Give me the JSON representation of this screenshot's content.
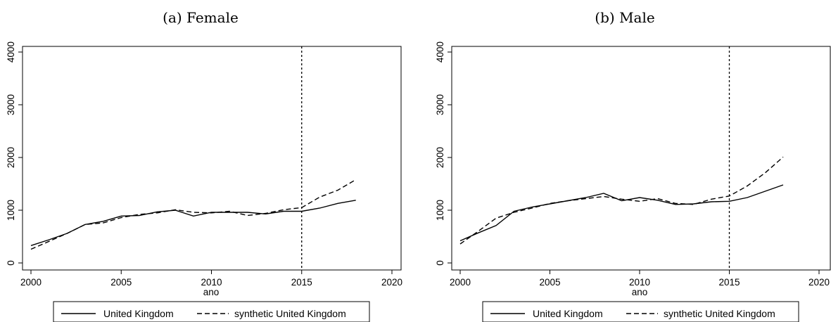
{
  "chart_data": [
    {
      "type": "line",
      "title": "(a) Female",
      "xlabel": "ano",
      "ylabel": "",
      "xlim": [
        2000,
        2020
      ],
      "ylim": [
        0,
        4000
      ],
      "xticks": [
        2000,
        2005,
        2010,
        2015,
        2020
      ],
      "yticks": [
        0,
        1000,
        2000,
        3000,
        4000
      ],
      "vline": 2015,
      "legend_position": "bottom",
      "series": [
        {
          "name": "United Kingdom",
          "style": "solid",
          "color": "#000000",
          "x": [
            2000,
            2001,
            2002,
            2003,
            2004,
            2005,
            2006,
            2007,
            2008,
            2009,
            2010,
            2011,
            2012,
            2013,
            2014,
            2015,
            2016,
            2017,
            2018
          ],
          "values": [
            330,
            440,
            560,
            730,
            790,
            890,
            900,
            970,
            1000,
            890,
            960,
            960,
            960,
            930,
            980,
            980,
            1040,
            1130,
            1190
          ]
        },
        {
          "name": "synthetic United Kingdom",
          "style": "dashed",
          "color": "#000000",
          "x": [
            2000,
            2001,
            2002,
            2003,
            2004,
            2005,
            2006,
            2007,
            2008,
            2009,
            2010,
            2011,
            2012,
            2013,
            2014,
            2015,
            2016,
            2017,
            2018
          ],
          "values": [
            260,
            410,
            560,
            730,
            760,
            860,
            920,
            950,
            1010,
            960,
            950,
            980,
            900,
            940,
            1010,
            1050,
            1250,
            1380,
            1580
          ]
        }
      ]
    },
    {
      "type": "line",
      "title": "(b) Male",
      "xlabel": "ano",
      "ylabel": "",
      "xlim": [
        2000,
        2020
      ],
      "ylim": [
        0,
        4000
      ],
      "xticks": [
        2000,
        2005,
        2010,
        2015,
        2020
      ],
      "yticks": [
        0,
        1000,
        2000,
        3000,
        4000
      ],
      "vline": 2015,
      "legend_position": "bottom",
      "series": [
        {
          "name": "United Kingdom",
          "style": "solid",
          "color": "#000000",
          "x": [
            2000,
            2001,
            2002,
            2003,
            2004,
            2005,
            2006,
            2007,
            2008,
            2009,
            2010,
            2011,
            2012,
            2013,
            2014,
            2015,
            2016,
            2017,
            2018
          ],
          "values": [
            420,
            570,
            710,
            980,
            1060,
            1120,
            1180,
            1240,
            1320,
            1180,
            1240,
            1190,
            1110,
            1120,
            1160,
            1170,
            1240,
            1360,
            1480
          ]
        },
        {
          "name": "synthetic United Kingdom",
          "style": "dashed",
          "color": "#000000",
          "x": [
            2000,
            2001,
            2002,
            2003,
            2004,
            2005,
            2006,
            2007,
            2008,
            2009,
            2010,
            2011,
            2012,
            2013,
            2014,
            2015,
            2016,
            2017,
            2018
          ],
          "values": [
            360,
            600,
            850,
            960,
            1040,
            1130,
            1180,
            1220,
            1260,
            1210,
            1170,
            1220,
            1130,
            1110,
            1210,
            1270,
            1460,
            1710,
            2010
          ]
        }
      ]
    }
  ]
}
